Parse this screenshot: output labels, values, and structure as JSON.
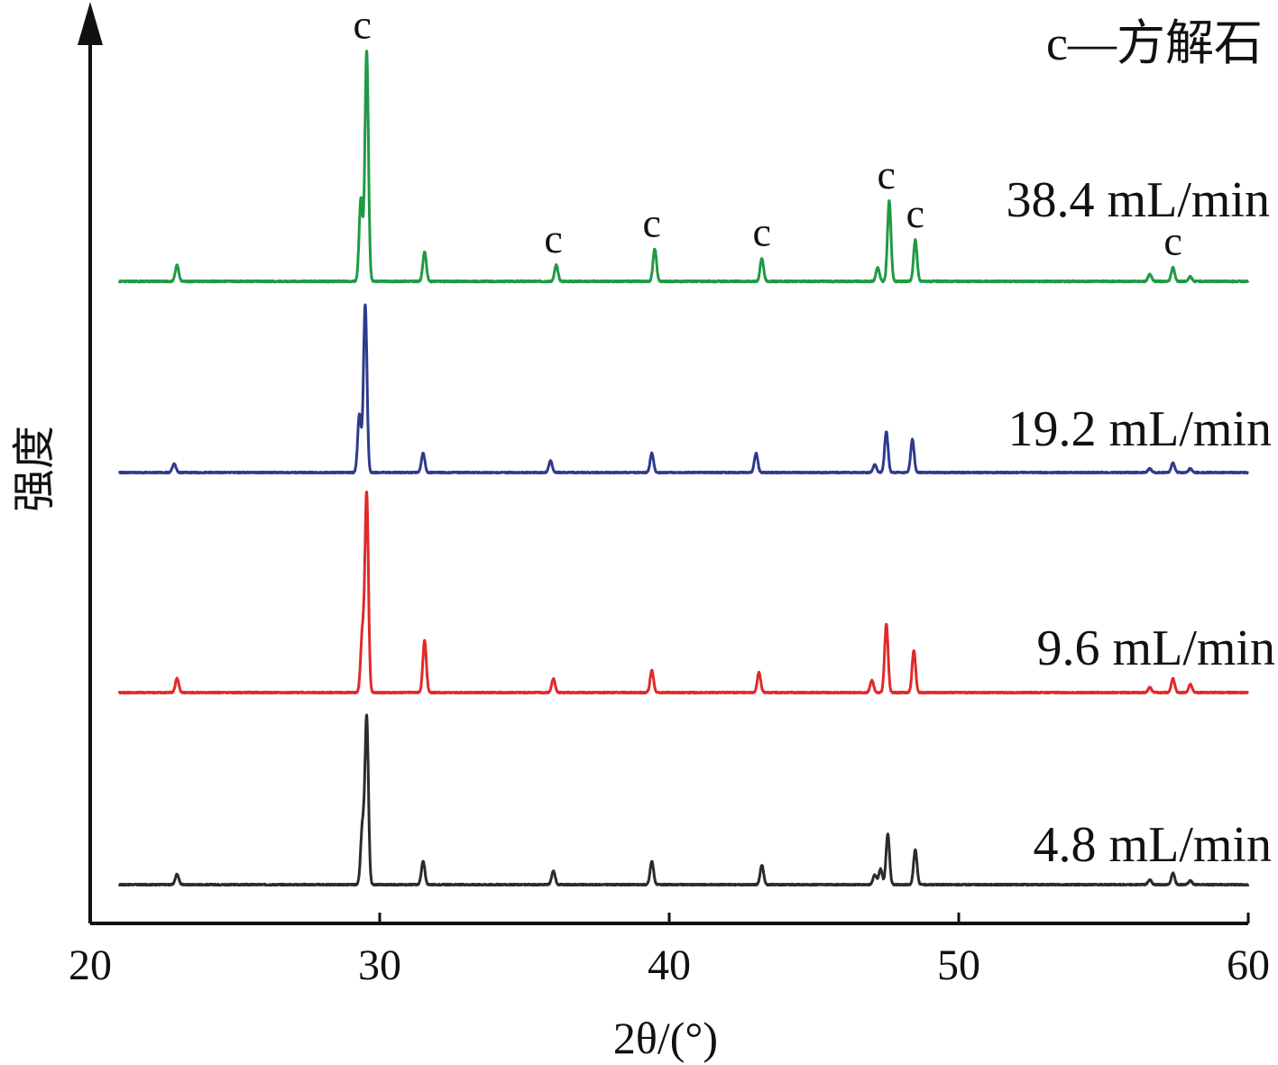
{
  "chart_data": {
    "type": "line",
    "xlabel": "2θ/(°)",
    "ylabel": "强度",
    "xlim": [
      20,
      60
    ],
    "x_ticks": [
      "20",
      "30",
      "40",
      "50",
      "60"
    ],
    "legend_note": "c—方解石",
    "peak_marker": "c",
    "peak_positions": [
      29.4,
      36.0,
      39.4,
      43.2,
      47.5,
      48.5,
      57.4
    ],
    "y_ticks_shown": false,
    "series_order_bottom_to_top": [
      "4.8 mL/min",
      "9.6 mL/min",
      "19.2 mL/min",
      "38.4 mL/min"
    ],
    "series": [
      {
        "name": "4.8 mL/min",
        "color": "#2b2b2b",
        "peaks": [
          {
            "x": 23.0,
            "h": 0.055
          },
          {
            "x": 29.4,
            "h": 0.29
          },
          {
            "x": 29.55,
            "h": 0.86
          },
          {
            "x": 31.5,
            "h": 0.12
          },
          {
            "x": 36.0,
            "h": 0.07
          },
          {
            "x": 39.4,
            "h": 0.12
          },
          {
            "x": 43.2,
            "h": 0.1
          },
          {
            "x": 47.1,
            "h": 0.05
          },
          {
            "x": 47.3,
            "h": 0.08
          },
          {
            "x": 47.55,
            "h": 0.26
          },
          {
            "x": 48.5,
            "h": 0.18
          },
          {
            "x": 56.6,
            "h": 0.025
          },
          {
            "x": 57.4,
            "h": 0.06
          },
          {
            "x": 58.0,
            "h": 0.02
          }
        ]
      },
      {
        "name": "9.6 mL/min",
        "color": "#e02a2a",
        "peaks": [
          {
            "x": 23.0,
            "h": 0.07
          },
          {
            "x": 29.4,
            "h": 0.29
          },
          {
            "x": 29.55,
            "h": 0.99
          },
          {
            "x": 31.55,
            "h": 0.26
          },
          {
            "x": 36.0,
            "h": 0.07
          },
          {
            "x": 39.4,
            "h": 0.11
          },
          {
            "x": 43.1,
            "h": 0.1
          },
          {
            "x": 47.0,
            "h": 0.06
          },
          {
            "x": 47.5,
            "h": 0.34
          },
          {
            "x": 48.45,
            "h": 0.21
          },
          {
            "x": 56.6,
            "h": 0.025
          },
          {
            "x": 57.4,
            "h": 0.07
          },
          {
            "x": 58.0,
            "h": 0.04
          }
        ]
      },
      {
        "name": "19.2 mL/min",
        "color": "#2e3a8c",
        "peaks": [
          {
            "x": 22.9,
            "h": 0.045
          },
          {
            "x": 29.3,
            "h": 0.3
          },
          {
            "x": 29.5,
            "h": 0.87
          },
          {
            "x": 31.5,
            "h": 0.1
          },
          {
            "x": 35.9,
            "h": 0.06
          },
          {
            "x": 39.4,
            "h": 0.1
          },
          {
            "x": 43.0,
            "h": 0.1
          },
          {
            "x": 47.1,
            "h": 0.04
          },
          {
            "x": 47.5,
            "h": 0.21
          },
          {
            "x": 48.4,
            "h": 0.17
          },
          {
            "x": 56.6,
            "h": 0.02
          },
          {
            "x": 57.4,
            "h": 0.05
          },
          {
            "x": 58.0,
            "h": 0.02
          }
        ]
      },
      {
        "name": "38.4 mL/min",
        "color": "#1f9a44",
        "peaks": [
          {
            "x": 23.0,
            "h": 0.07
          },
          {
            "x": 29.35,
            "h": 0.36
          },
          {
            "x": 29.55,
            "h": 1.0
          },
          {
            "x": 31.55,
            "h": 0.13
          },
          {
            "x": 36.1,
            "h": 0.07
          },
          {
            "x": 39.5,
            "h": 0.14
          },
          {
            "x": 43.2,
            "h": 0.1
          },
          {
            "x": 47.2,
            "h": 0.06
          },
          {
            "x": 47.6,
            "h": 0.35
          },
          {
            "x": 48.5,
            "h": 0.18
          },
          {
            "x": 56.6,
            "h": 0.03
          },
          {
            "x": 57.4,
            "h": 0.06
          },
          {
            "x": 58.0,
            "h": 0.02
          }
        ]
      }
    ]
  }
}
